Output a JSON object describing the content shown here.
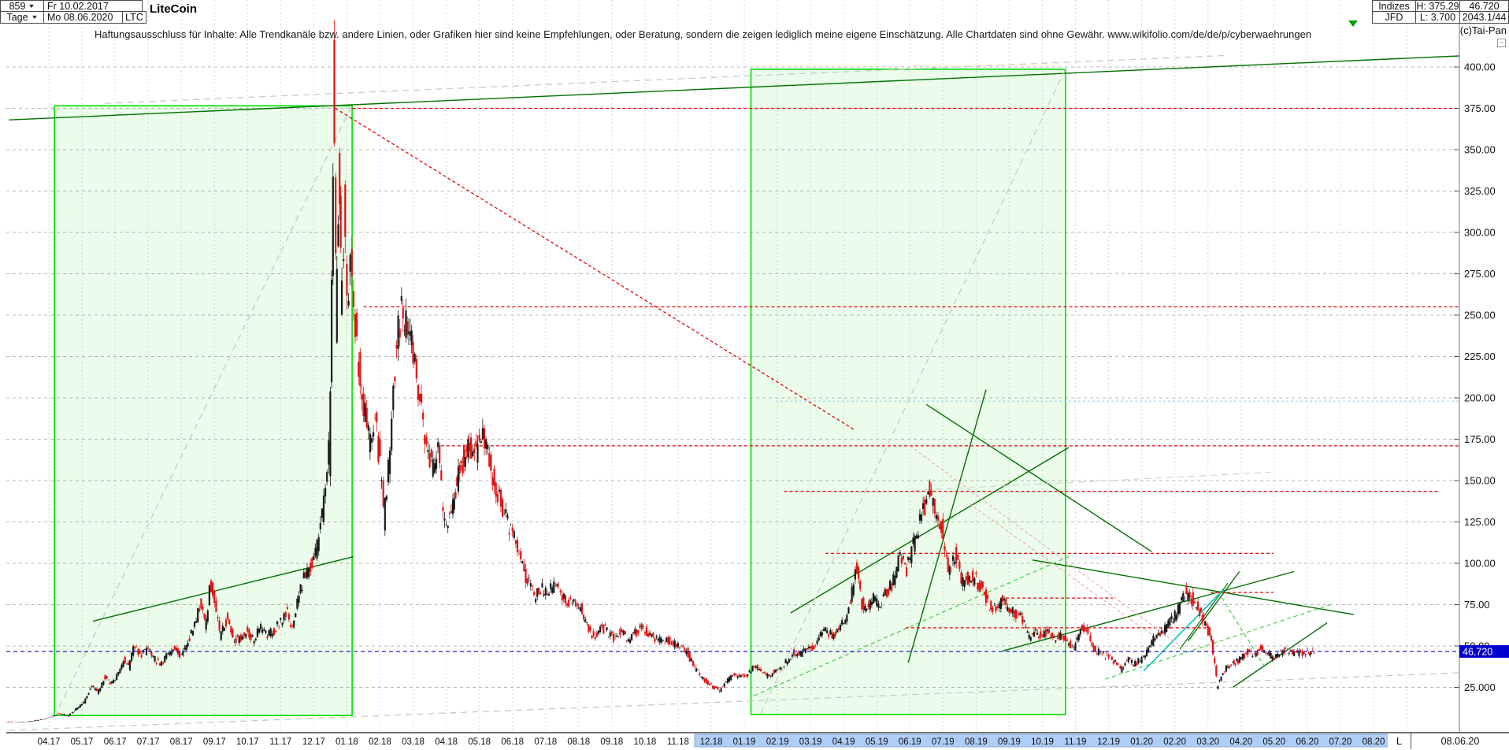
{
  "header": {
    "bars_count": "859",
    "period": "Tage",
    "date_from": "Fr 10.02.2017",
    "date_to": "Mo 08.06.2020",
    "symbol": "LTC",
    "title": "LiteCoin",
    "right_table": {
      "group": "Indizes",
      "provider": "JFD",
      "high": "H: 375.29",
      "low": "L: 3.700",
      "last_price": "46.720",
      "extra": "2043.1/44"
    },
    "copyright": "(c)Tai-Pan"
  },
  "icons": {
    "dropdown": "triangle-down",
    "top_marker": "green-triangle-down",
    "minimize": "−"
  },
  "disclaimer": "Haftungsausschluss für Inhalte: Alle Trendkanäle bzw. andere Linien, oder Grafiken hier sind keine Empfehlungen, oder Beratung, sondern die zeigen lediglich meine eigene Einschätzung. Alle Chartdaten sind ohne Gewähr.   www.wikifolio.com/de/de/p/cyberwaehrungen",
  "bottom_bar": {
    "l_cell": "L",
    "date_cell": "08.06.20",
    "highlight_from": "12.18",
    "highlight_to": "08.20"
  },
  "chart_data": {
    "type": "candlestick",
    "title": "LiteCoin",
    "instrument": "LTC",
    "period": "daily",
    "overall_high": 375.29,
    "overall_low": 3.7,
    "current_price": 46.72,
    "current_price_label": "46.720",
    "ylim": [
      0,
      410
    ],
    "grid": true,
    "colors": {
      "candle_up": "#1a1a1a",
      "candle_down": "#e21212",
      "box_fill": "rgba(0,220,0,0.08)",
      "box_border": "#00dd00",
      "trend_green": "#007000",
      "dashed_green": "#44cc44",
      "red_line": "#e80000",
      "pink_line": "#f0a8a8",
      "gray_line": "#c9c9c9",
      "cyan_line": "#00c0c0",
      "current_line": "#2020cc",
      "badge_bg": "#0000cc",
      "x_highlight": "#aecdf7"
    },
    "y_ticks": [
      {
        "value": 400,
        "label": "400.00"
      },
      {
        "value": 375,
        "label": "375.00"
      },
      {
        "value": 350,
        "label": "350.00"
      },
      {
        "value": 325,
        "label": "325.00"
      },
      {
        "value": 300,
        "label": "300.00"
      },
      {
        "value": 275,
        "label": "275.00"
      },
      {
        "value": 250,
        "label": "250.00"
      },
      {
        "value": 225,
        "label": "225.00"
      },
      {
        "value": 200,
        "label": "200.00"
      },
      {
        "value": 175,
        "label": "175.00"
      },
      {
        "value": 150,
        "label": "150.00"
      },
      {
        "value": 125,
        "label": "125.00"
      },
      {
        "value": 100,
        "label": "100.00"
      },
      {
        "value": 75,
        "label": "75.00"
      },
      {
        "value": 50,
        "label": "50.00"
      },
      {
        "value": 25,
        "label": "25.000"
      }
    ],
    "x_labels": [
      "04.17",
      "05.17",
      "06.17",
      "07.17",
      "08.17",
      "09.17",
      "10.17",
      "11.17",
      "12.17",
      "01.18",
      "02.18",
      "03.18",
      "04.18",
      "05.18",
      "06.18",
      "07.18",
      "08.18",
      "09.18",
      "10.18",
      "11.18",
      "12.18",
      "01.19",
      "02.19",
      "03.19",
      "04.19",
      "05.19",
      "06.19",
      "07.19",
      "08.19",
      "09.19",
      "10.19",
      "11.19",
      "12.19",
      "01.20",
      "02.20",
      "03.20",
      "04.20",
      "05.20",
      "06.20",
      "07.20",
      "08.20"
    ],
    "x_highlight_start_index": 20,
    "series": [
      [
        -1.25,
        4.2
      ],
      [
        -0.9,
        3.8
      ],
      [
        -0.5,
        4.6
      ],
      [
        -0.2,
        5.6
      ],
      [
        0,
        6.5
      ],
      [
        0.3,
        9
      ],
      [
        0.6,
        8
      ],
      [
        0.9,
        13
      ],
      [
        1.1,
        17
      ],
      [
        1.3,
        26
      ],
      [
        1.5,
        22
      ],
      [
        1.7,
        31
      ],
      [
        1.9,
        27
      ],
      [
        2.1,
        33
      ],
      [
        2.3,
        42
      ],
      [
        2.45,
        38
      ],
      [
        2.6,
        51
      ],
      [
        2.8,
        44
      ],
      [
        3.0,
        48
      ],
      [
        3.2,
        42
      ],
      [
        3.4,
        39
      ],
      [
        3.6,
        45
      ],
      [
        3.8,
        49
      ],
      [
        4.0,
        44
      ],
      [
        4.2,
        52
      ],
      [
        4.4,
        61
      ],
      [
        4.6,
        76
      ],
      [
        4.75,
        63
      ],
      [
        4.9,
        88
      ],
      [
        5.05,
        73
      ],
      [
        5.2,
        57
      ],
      [
        5.4,
        66
      ],
      [
        5.6,
        53
      ],
      [
        5.8,
        55
      ],
      [
        6.0,
        59
      ],
      [
        6.2,
        53
      ],
      [
        6.4,
        61
      ],
      [
        6.6,
        56
      ],
      [
        6.8,
        59
      ],
      [
        7.0,
        64
      ],
      [
        7.2,
        71
      ],
      [
        7.35,
        61
      ],
      [
        7.5,
        74
      ],
      [
        7.7,
        90
      ],
      [
        7.9,
        99
      ],
      [
        8.1,
        107
      ],
      [
        8.3,
        135
      ],
      [
        8.5,
        178
      ],
      [
        8.62,
        375
      ],
      [
        8.7,
        255
      ],
      [
        8.78,
        330
      ],
      [
        8.85,
        258
      ],
      [
        8.95,
        305
      ],
      [
        9.05,
        252
      ],
      [
        9.15,
        288
      ],
      [
        9.3,
        236
      ],
      [
        9.5,
        196
      ],
      [
        9.7,
        173
      ],
      [
        9.85,
        189
      ],
      [
        10.0,
        163
      ],
      [
        10.15,
        128
      ],
      [
        10.3,
        168
      ],
      [
        10.5,
        226
      ],
      [
        10.65,
        253
      ],
      [
        11.0,
        229
      ],
      [
        11.2,
        199
      ],
      [
        11.4,
        173
      ],
      [
        11.6,
        158
      ],
      [
        11.8,
        171
      ],
      [
        11.9,
        133
      ],
      [
        12.0,
        119
      ],
      [
        12.2,
        135
      ],
      [
        12.45,
        159
      ],
      [
        12.7,
        173
      ],
      [
        12.9,
        167
      ],
      [
        13.1,
        177
      ],
      [
        13.3,
        161
      ],
      [
        13.5,
        147
      ],
      [
        13.7,
        135
      ],
      [
        13.9,
        122
      ],
      [
        14.1,
        114
      ],
      [
        14.3,
        98
      ],
      [
        14.5,
        89
      ],
      [
        14.7,
        80
      ],
      [
        14.9,
        85
      ],
      [
        15.1,
        82
      ],
      [
        15.3,
        88
      ],
      [
        15.5,
        80
      ],
      [
        15.7,
        75
      ],
      [
        15.9,
        78
      ],
      [
        16.1,
        72
      ],
      [
        16.3,
        60
      ],
      [
        16.5,
        55
      ],
      [
        16.7,
        62
      ],
      [
        16.9,
        58
      ],
      [
        17.1,
        55
      ],
      [
        17.3,
        60
      ],
      [
        17.5,
        52
      ],
      [
        17.7,
        58
      ],
      [
        17.9,
        61
      ],
      [
        18.1,
        58
      ],
      [
        18.3,
        55
      ],
      [
        18.5,
        53
      ],
      [
        18.7,
        54
      ],
      [
        18.9,
        51
      ],
      [
        19.1,
        50
      ],
      [
        19.3,
        46
      ],
      [
        19.5,
        37
      ],
      [
        19.7,
        32
      ],
      [
        19.9,
        28
      ],
      [
        20.1,
        25
      ],
      [
        20.3,
        23.5
      ],
      [
        20.5,
        29
      ],
      [
        20.7,
        33
      ],
      [
        20.9,
        31
      ],
      [
        21.1,
        33
      ],
      [
        21.3,
        38
      ],
      [
        21.5,
        35
      ],
      [
        21.7,
        32
      ],
      [
        21.9,
        34
      ],
      [
        22.1,
        35
      ],
      [
        22.3,
        41
      ],
      [
        22.5,
        46
      ],
      [
        22.7,
        45
      ],
      [
        22.9,
        48
      ],
      [
        23.1,
        49
      ],
      [
        23.3,
        56
      ],
      [
        23.5,
        59
      ],
      [
        23.7,
        57
      ],
      [
        23.9,
        61
      ],
      [
        24.1,
        66
      ],
      [
        24.25,
        81
      ],
      [
        24.4,
        99
      ],
      [
        24.55,
        76
      ],
      [
        24.75,
        73
      ],
      [
        24.9,
        79
      ],
      [
        25.1,
        74
      ],
      [
        25.3,
        82
      ],
      [
        25.5,
        88
      ],
      [
        25.7,
        104
      ],
      [
        25.9,
        95
      ],
      [
        26.1,
        110
      ],
      [
        26.3,
        125
      ],
      [
        26.45,
        134
      ],
      [
        26.6,
        146
      ],
      [
        26.8,
        129
      ],
      [
        27.0,
        119
      ],
      [
        27.2,
        95
      ],
      [
        27.4,
        104
      ],
      [
        27.6,
        88
      ],
      [
        27.8,
        92
      ],
      [
        28.0,
        90
      ],
      [
        28.2,
        85
      ],
      [
        28.4,
        75
      ],
      [
        28.6,
        72
      ],
      [
        28.8,
        78
      ],
      [
        29.0,
        73
      ],
      [
        29.2,
        70
      ],
      [
        29.4,
        68
      ],
      [
        29.6,
        55
      ],
      [
        29.8,
        58
      ],
      [
        30.0,
        56
      ],
      [
        30.2,
        60
      ],
      [
        30.4,
        54
      ],
      [
        30.6,
        58
      ],
      [
        30.8,
        52
      ],
      [
        31.0,
        50
      ],
      [
        31.2,
        62
      ],
      [
        31.4,
        58
      ],
      [
        31.6,
        48
      ],
      [
        31.8,
        45
      ],
      [
        32.0,
        44
      ],
      [
        32.2,
        40
      ],
      [
        32.4,
        36
      ],
      [
        32.6,
        42
      ],
      [
        32.8,
        39
      ],
      [
        33.0,
        42
      ],
      [
        33.2,
        48
      ],
      [
        33.4,
        55
      ],
      [
        33.6,
        58
      ],
      [
        33.8,
        62
      ],
      [
        34.0,
        68
      ],
      [
        34.2,
        75
      ],
      [
        34.35,
        82
      ],
      [
        34.55,
        78
      ],
      [
        34.75,
        71
      ],
      [
        35.0,
        61
      ],
      [
        35.15,
        49
      ],
      [
        35.3,
        26
      ],
      [
        35.5,
        35
      ],
      [
        35.7,
        39
      ],
      [
        36.0,
        42
      ],
      [
        36.2,
        46
      ],
      [
        36.4,
        44
      ],
      [
        36.6,
        48
      ],
      [
        36.8,
        45
      ],
      [
        37.0,
        43
      ],
      [
        37.2,
        46
      ],
      [
        37.4,
        48
      ],
      [
        37.6,
        45
      ],
      [
        37.8,
        47
      ],
      [
        38.0,
        45.5
      ],
      [
        38.12,
        47
      ],
      [
        38.25,
        46.72
      ]
    ],
    "boxes": [
      {
        "m1": 0.17,
        "m2": 9.16,
        "v_top": 376.5,
        "v_bottom": 8
      },
      {
        "m1": 21.2,
        "m2": 30.7,
        "v_top": 398.6,
        "v_bottom": 8.6
      }
    ],
    "lines": [
      {
        "p": [
          [
            -1.2,
            368
          ],
          [
            44.1,
            408
          ]
        ],
        "c": "#007000",
        "w": 1.4
      },
      {
        "p": [
          [
            1.33,
            65
          ],
          [
            9.2,
            104
          ]
        ],
        "c": "#007000",
        "w": 1.4
      },
      {
        "p": [
          [
            22.4,
            70
          ],
          [
            30.8,
            170
          ]
        ],
        "c": "#007000",
        "w": 1.4
      },
      {
        "p": [
          [
            25.95,
            40
          ],
          [
            28.3,
            205
          ]
        ],
        "c": "#007000",
        "w": 1.4
      },
      {
        "p": [
          [
            26.5,
            196
          ],
          [
            33.3,
            107
          ]
        ],
        "c": "#007000",
        "w": 1.4
      },
      {
        "p": [
          [
            29.7,
            102
          ],
          [
            39.4,
            69
          ]
        ],
        "c": "#007000",
        "w": 1.4
      },
      {
        "p": [
          [
            28.8,
            47
          ],
          [
            37.6,
            95
          ]
        ],
        "c": "#007000",
        "w": 1.4
      },
      {
        "p": [
          [
            34.4,
            53
          ],
          [
            35.95,
            95
          ]
        ],
        "c": "#007000",
        "w": 1.4
      },
      {
        "p": [
          [
            34.15,
            48
          ],
          [
            35.6,
            88
          ]
        ],
        "c": "#007000",
        "w": 1.2
      },
      {
        "p": [
          [
            35.75,
            25
          ],
          [
            38.6,
            64
          ]
        ],
        "c": "#007000",
        "w": 1.4
      },
      {
        "p": [
          [
            33.06,
            35
          ],
          [
            35.46,
            84
          ]
        ],
        "c": "#00c0c0",
        "w": 1.6
      },
      {
        "p": [
          [
            21.3,
            20
          ],
          [
            30.9,
            105
          ]
        ],
        "c": "#44cc44",
        "d": "5,4",
        "w": 1.2
      },
      {
        "p": [
          [
            31.9,
            30
          ],
          [
            38.7,
            75
          ]
        ],
        "c": "#44cc44",
        "d": "5,4",
        "w": 1.2
      },
      {
        "p": [
          [
            35.3,
            83
          ],
          [
            36.7,
            38
          ]
        ],
        "c": "#44cc44",
        "d": "5,4",
        "w": 1.2
      },
      {
        "p": [
          [
            8.65,
            375
          ],
          [
            24.3,
            181
          ]
        ],
        "c": "#e80000",
        "d": "4,3",
        "w": 1.3
      },
      {
        "p": [
          [
            9.16,
            375
          ],
          [
            42.59,
            375
          ]
        ],
        "c": "#e80000",
        "d": "4,3",
        "w": 1.3
      },
      {
        "p": [
          [
            9.5,
            255
          ],
          [
            42.59,
            255
          ]
        ],
        "c": "#e80000",
        "d": "4,3",
        "w": 1.3
      },
      {
        "p": [
          [
            11.84,
            171
          ],
          [
            42.59,
            171
          ]
        ],
        "c": "#e80000",
        "d": "4,3",
        "w": 1.3
      },
      {
        "p": [
          [
            22.2,
            143.5
          ],
          [
            42.0,
            143.5
          ]
        ],
        "c": "#e80000",
        "d": "4,3",
        "w": 1.3
      },
      {
        "p": [
          [
            23.45,
            106
          ],
          [
            36.98,
            106
          ]
        ],
        "c": "#e80000",
        "d": "4,3",
        "w": 1.3
      },
      {
        "p": [
          [
            35.08,
            82.4
          ],
          [
            36.98,
            82.4
          ]
        ],
        "c": "#e80000",
        "d": "4,3",
        "w": 1.2
      },
      {
        "p": [
          [
            28.73,
            79
          ],
          [
            32.13,
            79
          ]
        ],
        "c": "#e80000",
        "d": "4,3",
        "w": 1.2
      },
      {
        "p": [
          [
            25.87,
            61
          ],
          [
            35.08,
            61
          ]
        ],
        "c": "#e80000",
        "d": "4,3",
        "w": 1.2
      },
      {
        "p": [
          [
            26,
            171
          ],
          [
            34.3,
            48
          ]
        ],
        "c": "#f0a8a8",
        "d": "4,3",
        "w": 1.1
      },
      {
        "p": [
          [
            27.8,
            136
          ],
          [
            33.5,
            54
          ]
        ],
        "c": "#f0a8a8",
        "d": "4,3",
        "w": 1.1
      },
      {
        "p": [
          [
            0.17,
            7
          ],
          [
            9.16,
            377
          ]
        ],
        "c": "#c9c9c9",
        "d": "8,6",
        "w": 1.3
      },
      {
        "p": [
          [
            1.7,
            378
          ],
          [
            35.6,
            407
          ]
        ],
        "c": "#c9c9c9",
        "d": "8,6",
        "w": 1.3
      },
      {
        "p": [
          [
            21.5,
            9.5
          ],
          [
            30.7,
            399
          ]
        ],
        "c": "#c9c9c9",
        "d": "8,6",
        "w": 1.3
      },
      {
        "p": [
          [
            -1.2,
            -1
          ],
          [
            44.1,
            35
          ]
        ],
        "c": "#c9c9c9",
        "d": "8,6",
        "w": 1.3
      },
      {
        "p": [
          [
            26.1,
            144
          ],
          [
            36.9,
            155
          ]
        ],
        "c": "#cfcfcf",
        "d": "8,6",
        "w": 1.1
      },
      {
        "p": [
          [
            21.95,
            198
          ],
          [
            42.59,
            198
          ]
        ],
        "c": "#a0d4ee",
        "d": "3,3",
        "w": 1.2
      }
    ],
    "current_price_line": {
      "v": 46.72,
      "c": "#2020cc",
      "d": "5,4",
      "w": 1.2
    }
  }
}
